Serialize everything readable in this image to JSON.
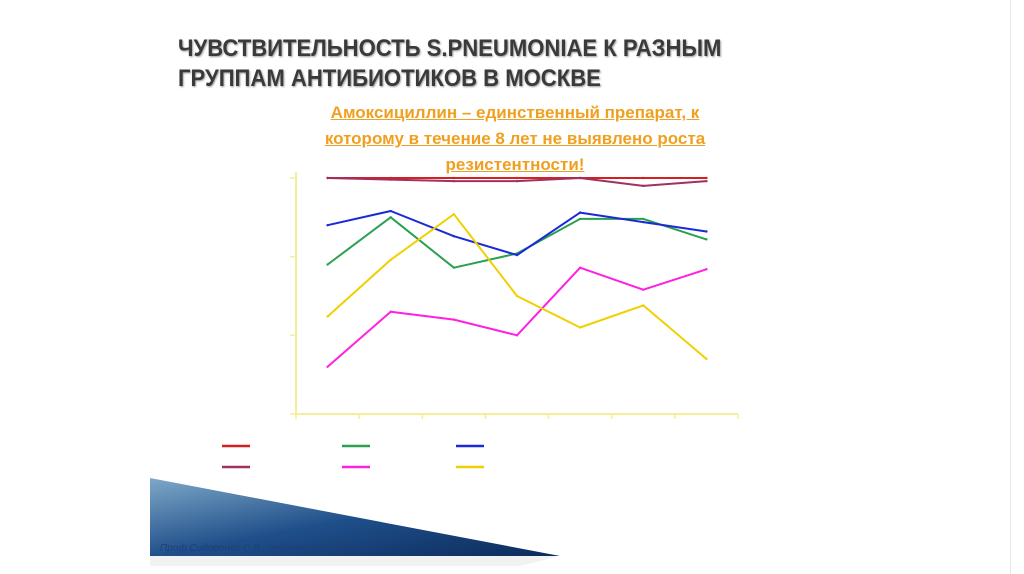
{
  "slide": {
    "title_line1": "ЧУВСТВИТЕЛЬНОСТЬ S.PNEUMONIAE К РАЗНЫМ",
    "title_line2": "ГРУППАМ АНТИБИОТИКОВ В МОСКВЕ",
    "callout_line1": "Амоксициллин – единственный препарат, к",
    "callout_line2": "которому в течение 8 лет не выявлено роста",
    "callout_line3": "резистентности!",
    "footer": "Проф Сидоренко С.В., собственные данные",
    "colors": {
      "title": "#3a3a3a",
      "callout": "#f0a020",
      "footer": "#1f3f7a"
    }
  },
  "chart_data": {
    "type": "line",
    "categories": [
      "",
      "",
      "",
      "",
      "",
      "",
      ""
    ],
    "ylim": [
      85,
      100
    ],
    "yticks": [
      85,
      90,
      95,
      100
    ],
    "yticklabels": [
      "",
      "",
      "",
      ""
    ],
    "ylabel": "",
    "grid": false,
    "legend_placement": "bottom",
    "axis_color": "#f5ef9a",
    "series": [
      {
        "color": "#d42020",
        "values": [
          100,
          100,
          100,
          100,
          100,
          100,
          100
        ]
      },
      {
        "color": "#a03060",
        "values": [
          100,
          99.9,
          99.8,
          99.8,
          100,
          99.5,
          99.8
        ]
      },
      {
        "color": "#2aa050",
        "values": [
          94.5,
          97.5,
          94.3,
          95.2,
          97.4,
          97.4,
          96.1
        ]
      },
      {
        "color": "#1a2ad8",
        "values": [
          97.0,
          97.9,
          96.3,
          95.1,
          97.8,
          97.2,
          96.6
        ]
      },
      {
        "color": "#ff20e0",
        "values": [
          88.0,
          91.5,
          91.0,
          90.0,
          94.3,
          92.9,
          94.2
        ]
      },
      {
        "color": "#f0d000",
        "values": [
          91.2,
          94.8,
          97.7,
          92.5,
          90.5,
          91.9,
          88.5
        ]
      }
    ]
  }
}
